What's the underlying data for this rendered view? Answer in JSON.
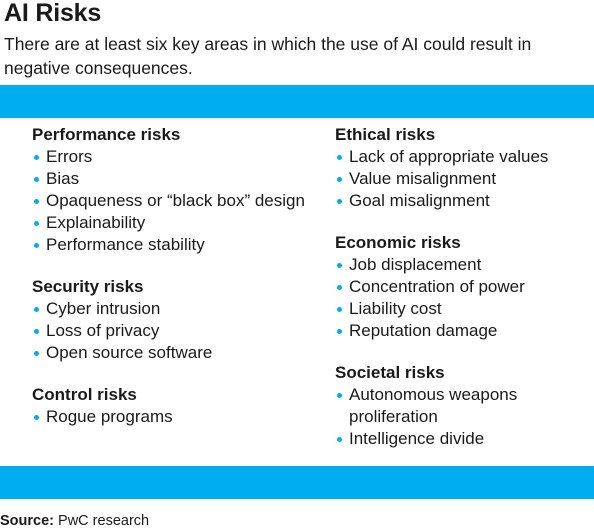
{
  "title": "AI Risks",
  "subtitle": "There are at least six key areas in which the use of AI could result in negative consequences.",
  "colors": {
    "accent": "#00aeef",
    "text": "#1a1a1a"
  },
  "left_column": [
    {
      "title": "Performance risks",
      "items": [
        "Errors",
        "Bias",
        "Opaqueness or “black box” design",
        "Explainability",
        "Performance stability"
      ]
    },
    {
      "title": "Security risks",
      "items": [
        "Cyber intrusion",
        "Loss of privacy",
        "Open source software"
      ]
    },
    {
      "title": "Control risks",
      "items": [
        "Rogue programs"
      ]
    }
  ],
  "right_column": [
    {
      "title": "Ethical risks",
      "items": [
        "Lack of appropriate values",
        "Value misalignment",
        "Goal misalignment"
      ]
    },
    {
      "title": "Economic risks",
      "items": [
        "Job displacement",
        "Concentration of power",
        "Liability cost",
        "Reputation damage"
      ]
    },
    {
      "title": "Societal risks",
      "items": [
        "Autonomous weapons proliferation",
        "Intelligence divide"
      ]
    }
  ],
  "source": {
    "label": "Source:",
    "text": " PwC research"
  }
}
